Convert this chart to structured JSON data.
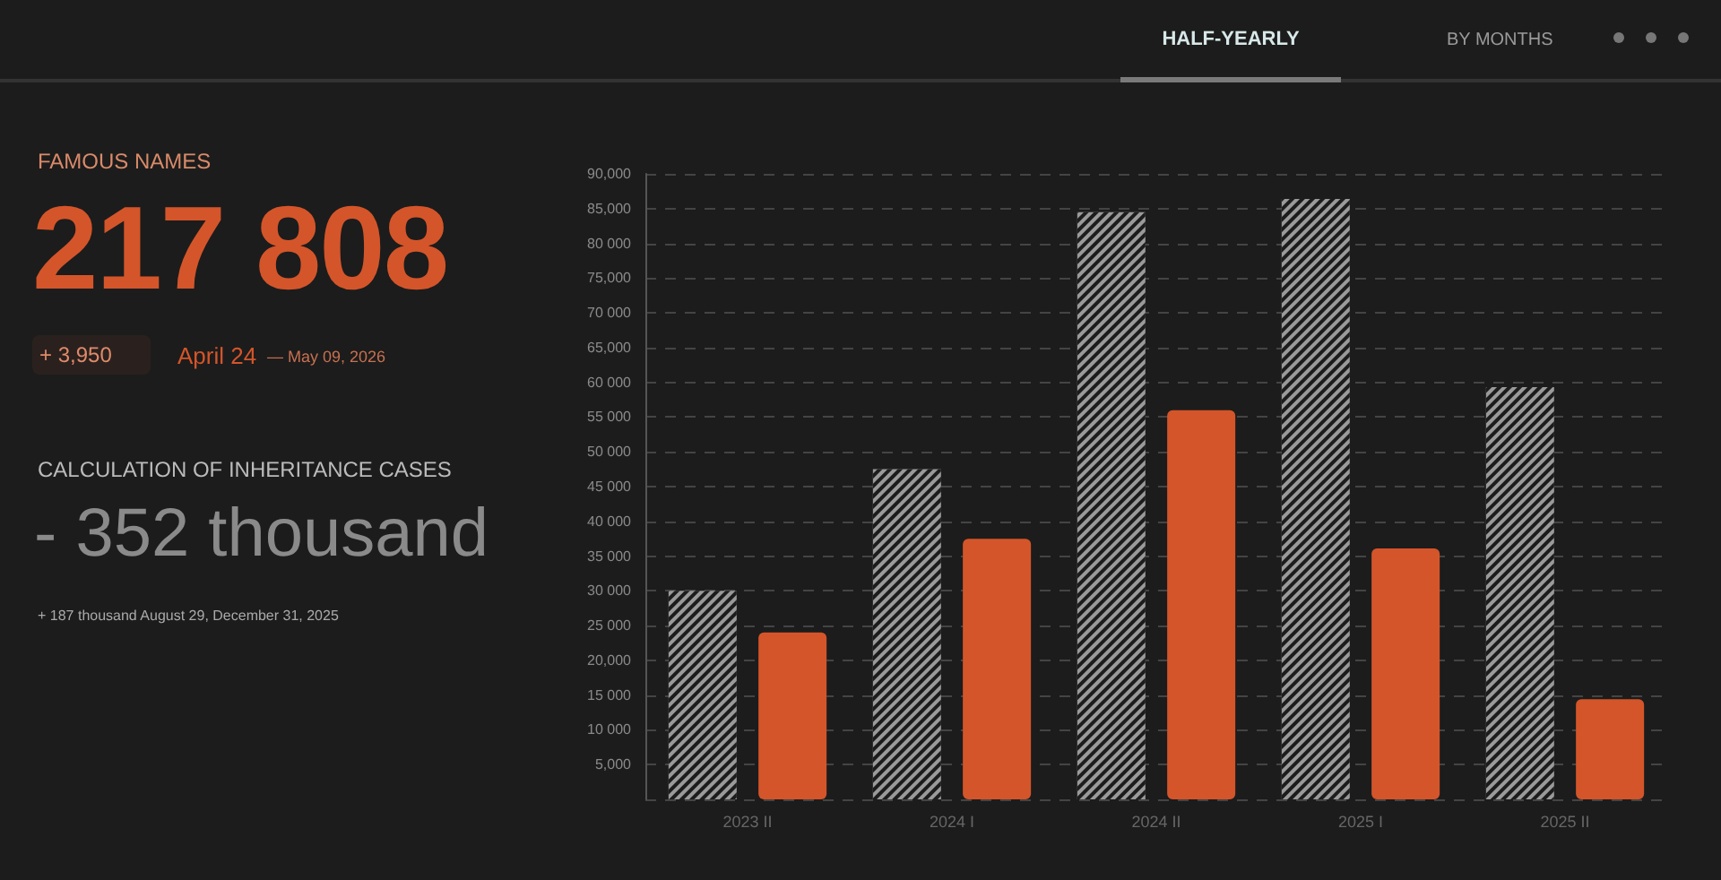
{
  "chart_data": [
    {
      "type": "other",
      "title": "FAMOUS NAMES",
      "annotations": [
        "217 808",
        "+ 3,950",
        "April 24",
        "— May 09, 2026",
        "CALCULATION OF INHERITANCE CASES",
        "- 352 thousand",
        "+ 187 thousand August 29, December 31, 2025"
      ]
    },
    {
      "type": "bar",
      "categories": [
        "2023 II",
        "2024 I",
        "2024 II",
        "2025 I",
        "2025 II"
      ],
      "series": [
        {
          "color": "#9a9a9a",
          "values": [
            30000,
            47500,
            84500,
            86400,
            59300
          ]
        },
        {
          "color": "#d4552a",
          "values": [
            24000,
            37500,
            56000,
            36100,
            14400
          ]
        }
      ],
      "ylim": [
        0,
        90000
      ],
      "yticks": [
        {
          "value": 5000,
          "label": "5,000"
        },
        {
          "value": 10000,
          "label": "10 000"
        },
        {
          "value": 15000,
          "label": "15 000"
        },
        {
          "value": 20000,
          "label": "20,000"
        },
        {
          "value": 25000,
          "label": "25 000"
        },
        {
          "value": 30000,
          "label": "30 000"
        },
        {
          "value": 35000,
          "label": "35 000"
        },
        {
          "value": 40000,
          "label": "40 000"
        },
        {
          "value": 45000,
          "label": "45 000"
        },
        {
          "value": 50000,
          "label": "50 000"
        },
        {
          "value": 55000,
          "label": "55 000"
        },
        {
          "value": 60000,
          "label": "60 000"
        },
        {
          "value": 65000,
          "label": "65,000"
        },
        {
          "value": 70000,
          "label": "70 000"
        },
        {
          "value": 75000,
          "label": "75,000"
        },
        {
          "value": 80000,
          "label": "80 000"
        },
        {
          "value": 85000,
          "label": "85,000"
        },
        {
          "value": 90000,
          "label": "90,000"
        }
      ],
      "grid": "y",
      "annotations": [
        "HALF-YEARLY",
        "BY MONTHS"
      ]
    }
  ]
}
